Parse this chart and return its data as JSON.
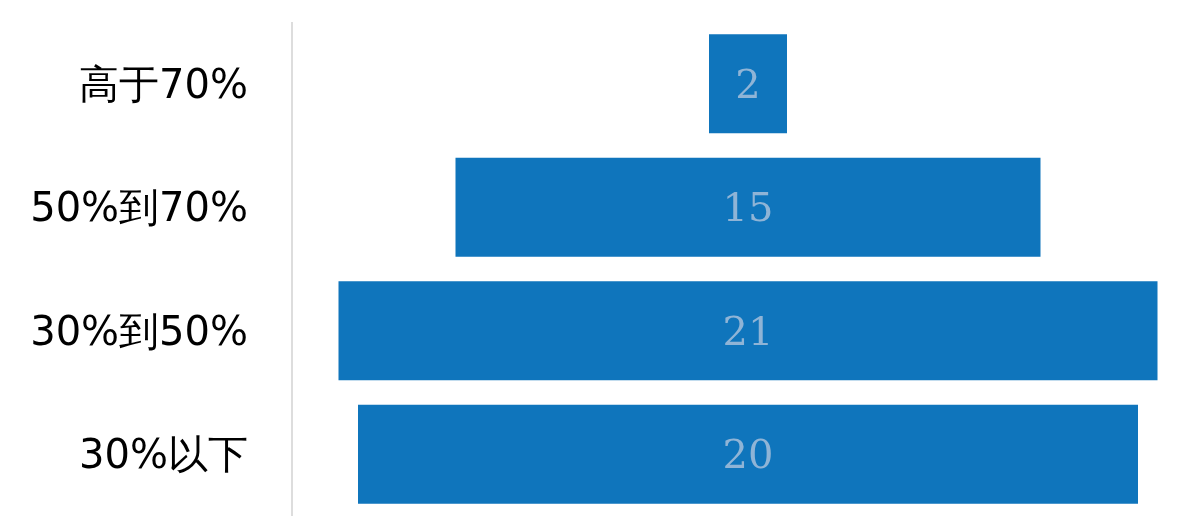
{
  "chart_data": {
    "type": "other",
    "categories": [
      "高于70%",
      "50%到70%",
      "30%到50%",
      "30%以下"
    ],
    "values": [
      2,
      15,
      21,
      20
    ],
    "color": "#0f75bc",
    "data_labels": true
  }
}
